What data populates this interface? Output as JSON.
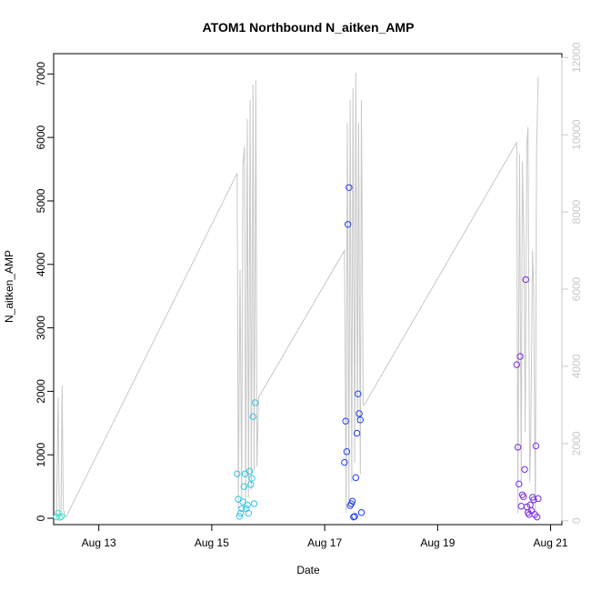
{
  "chart_data": {
    "type": "scatter",
    "title": "ATOM1 Northbound N_aitken_AMP",
    "xlabel": "Date",
    "ylabel": "N_aitken_AMP",
    "x_unit": "days since Aug 12 00:00",
    "xlim": [
      0.2,
      9.2
    ],
    "ylim": [
      -100,
      7320
    ],
    "y2lim": [
      -100,
      12100
    ],
    "x_ticks": [
      {
        "value": 1,
        "label": "Aug 13"
      },
      {
        "value": 3,
        "label": "Aug 15"
      },
      {
        "value": 5,
        "label": "Aug 17"
      },
      {
        "value": 7,
        "label": "Aug 19"
      },
      {
        "value": 9,
        "label": "Aug 21"
      }
    ],
    "y_ticks": [
      0,
      1000,
      2000,
      3000,
      4000,
      5000,
      6000,
      7000
    ],
    "y2_ticks": [
      0,
      2000,
      4000,
      6000,
      8000,
      10000,
      12000
    ],
    "colors": {
      "line": "#c8c8c8",
      "axis": "#000000",
      "right_axis": "#c8c8c8",
      "points_gradient": [
        "#40e0d0",
        "#30c6e6",
        "#1f3ff0",
        "#7a2be2"
      ]
    },
    "line_series": {
      "name": "secondary",
      "axis": "right",
      "x": [
        0.25,
        0.28,
        0.3,
        0.33,
        0.35,
        0.37,
        0.4,
        0.42,
        3.45,
        3.47,
        3.5,
        3.53,
        3.55,
        3.58,
        3.6,
        3.63,
        3.65,
        3.68,
        3.7,
        3.73,
        3.75,
        3.78,
        3.8,
        3.83,
        5.35,
        5.38,
        5.4,
        5.43,
        5.45,
        5.48,
        5.5,
        5.53,
        5.55,
        5.58,
        5.6,
        5.63,
        5.65,
        5.68,
        5.7,
        8.4,
        8.42,
        8.45,
        8.48,
        8.5,
        8.53,
        8.55,
        8.58,
        8.6,
        8.63,
        8.65,
        8.68,
        8.7,
        8.73,
        8.75,
        8.78
      ],
      "y": [
        100,
        3200,
        200,
        100,
        3500,
        300,
        150,
        100,
        9000,
        300,
        6500,
        500,
        9200,
        9700,
        400,
        10400,
        600,
        10900,
        800,
        11300,
        1300,
        11400,
        1400,
        3200,
        7000,
        200,
        10300,
        500,
        10900,
        1000,
        11200,
        1500,
        11600,
        2500,
        10300,
        1200,
        10900,
        3000,
        3000,
        9800,
        200,
        9500,
        1000,
        9300,
        7000,
        2300,
        9800,
        10200,
        1000,
        2200,
        7000,
        6000,
        200,
        9500,
        11500
      ]
    },
    "point_series": [
      {
        "x": [
          0.25,
          0.28,
          0.31,
          0.34
        ],
        "y": [
          20,
          80,
          15,
          30
        ],
        "color": "#40e0d0"
      },
      {
        "x": [
          3.45,
          3.47,
          3.49,
          3.51,
          3.53,
          3.55,
          3.57,
          3.59,
          3.61,
          3.63,
          3.65,
          3.67,
          3.69,
          3.71,
          3.73,
          3.75,
          3.77
        ],
        "y": [
          700,
          300,
          30,
          80,
          150,
          260,
          500,
          700,
          150,
          210,
          80,
          740,
          530,
          630,
          1600,
          230,
          1820
        ],
        "color": "#30c6e6"
      },
      {
        "x": [
          5.35,
          5.37,
          5.39,
          5.41,
          5.43,
          5.45,
          5.47,
          5.49,
          5.51,
          5.53,
          5.55,
          5.57,
          5.59,
          5.61,
          5.63,
          5.65
        ],
        "y": [
          880,
          1530,
          1050,
          4630,
          5210,
          200,
          230,
          270,
          20,
          30,
          640,
          1340,
          1960,
          1650,
          1550,
          90
        ],
        "color": "#1f3ff0"
      },
      {
        "x": [
          8.4,
          8.42,
          8.44,
          8.46,
          8.48,
          8.5,
          8.52,
          8.54,
          8.56,
          8.58,
          8.6,
          8.62,
          8.64,
          8.66,
          8.68,
          8.7,
          8.72,
          8.74,
          8.76,
          8.78
        ],
        "y": [
          2420,
          1120,
          540,
          2550,
          190,
          370,
          340,
          770,
          3760,
          180,
          90,
          60,
          210,
          120,
          330,
          290,
          60,
          1140,
          20,
          310
        ],
        "color": "#7a2be2"
      }
    ]
  }
}
